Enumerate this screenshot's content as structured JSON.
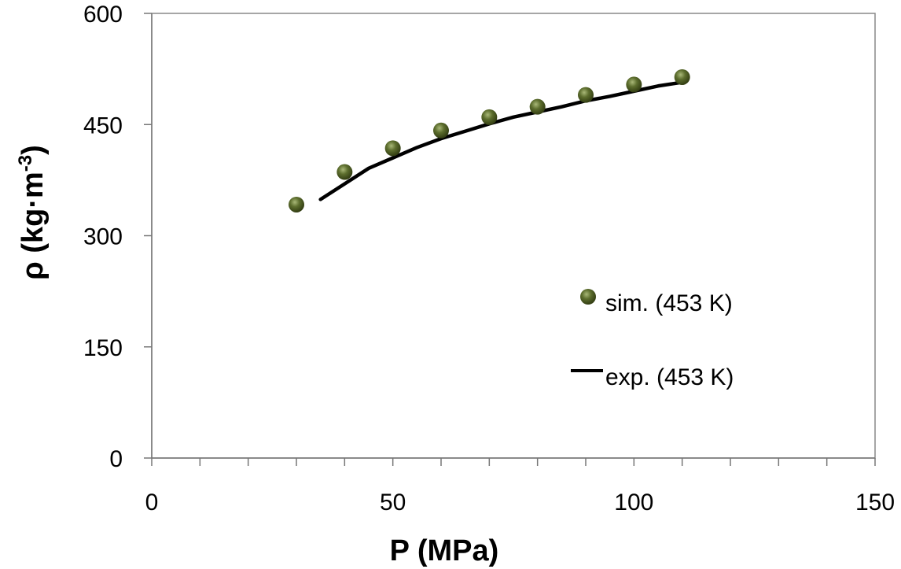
{
  "chart_data": {
    "type": "scatter",
    "xlabel": "P (MPa)",
    "ylabel": "ρ (kg·m",
    "ylabel_sup": "-3",
    "ylabel_end": ")",
    "xlim": [
      0,
      150
    ],
    "ylim": [
      0,
      600
    ],
    "x_ticks": [
      "0",
      "50",
      "100",
      "150"
    ],
    "y_ticks": [
      "0",
      "150",
      "300",
      "450",
      "600"
    ],
    "x_minor_step": 10,
    "grid": false,
    "legend_position": "bottom-right",
    "series": [
      {
        "name": "sim. (453 K)",
        "kind": "markers",
        "color": "#55662a",
        "x": [
          30,
          40,
          50,
          60,
          70,
          80,
          90,
          100,
          110
        ],
        "y": [
          342,
          386,
          418,
          442,
          460,
          474,
          490,
          504,
          514
        ]
      },
      {
        "name": "exp. (453 K)",
        "kind": "line",
        "color": "#000000",
        "x": [
          35,
          40,
          45,
          50,
          55,
          60,
          65,
          70,
          75,
          80,
          85,
          90,
          95,
          100,
          105,
          110
        ],
        "y": [
          349,
          370,
          391,
          405,
          419,
          431,
          441,
          451,
          460,
          467,
          474,
          482,
          488,
          495,
          502,
          507
        ]
      }
    ]
  }
}
